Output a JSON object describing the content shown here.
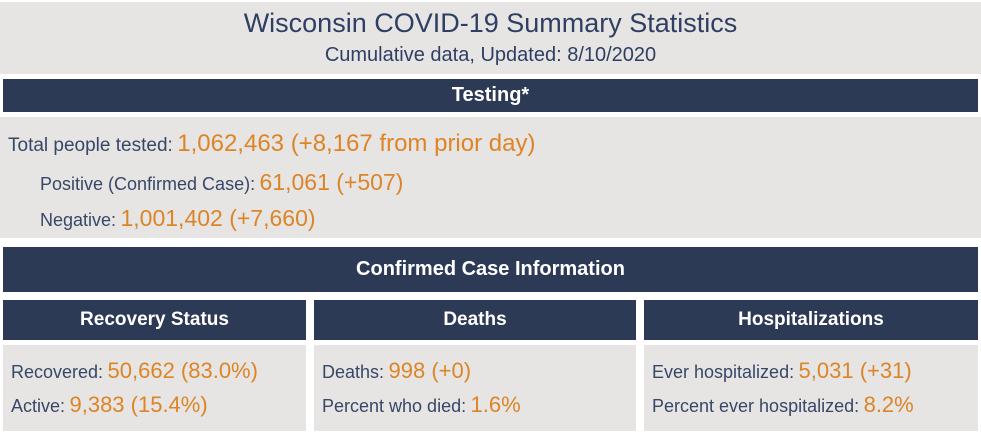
{
  "header": {
    "title": "Wisconsin COVID-19 Summary Statistics",
    "subtitle": "Cumulative data, Updated: 8/10/2020"
  },
  "colors": {
    "section_bar_navy": "#2d3a56",
    "label_navy": "#374766",
    "value_orange": "#dd8427",
    "panel_gray": "#e6e5e3"
  },
  "testing": {
    "header": "Testing*",
    "rows": [
      {
        "label": "Total people tested:",
        "value": "1,062,463 (+8,167 from prior day)"
      },
      {
        "label": "Positive (Confirmed Case):",
        "value": "61,061 (+507)"
      },
      {
        "label": "Negative:",
        "value": "1,001,402 (+7,660)"
      }
    ]
  },
  "confirmed": {
    "header": "Confirmed Case Information",
    "columns": [
      {
        "header": "Recovery Status",
        "rows": [
          {
            "label": "Recovered:",
            "value": "50,662 (83.0%)"
          },
          {
            "label": "Active:",
            "value": "9,383 (15.4%)"
          }
        ]
      },
      {
        "header": "Deaths",
        "rows": [
          {
            "label": "Deaths:",
            "value": "998 (+0)"
          },
          {
            "label": "Percent who died:",
            "value": "1.6%"
          }
        ]
      },
      {
        "header": "Hospitalizations",
        "rows": [
          {
            "label": "Ever hospitalized:",
            "value": "5,031 (+31)"
          },
          {
            "label": "Percent ever hospitalized:",
            "value": "8.2%"
          }
        ]
      }
    ]
  }
}
